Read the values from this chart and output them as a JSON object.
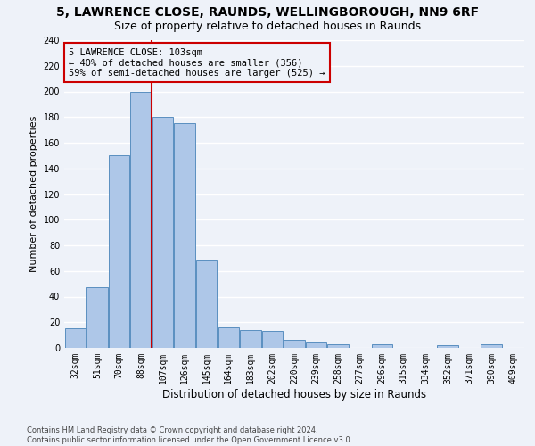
{
  "title_line1": "5, LAWRENCE CLOSE, RAUNDS, WELLINGBOROUGH, NN9 6RF",
  "title_line2": "Size of property relative to detached houses in Raunds",
  "xlabel": "Distribution of detached houses by size in Raunds",
  "ylabel": "Number of detached properties",
  "categories": [
    "32sqm",
    "51sqm",
    "70sqm",
    "88sqm",
    "107sqm",
    "126sqm",
    "145sqm",
    "164sqm",
    "183sqm",
    "202sqm",
    "220sqm",
    "239sqm",
    "258sqm",
    "277sqm",
    "296sqm",
    "315sqm",
    "334sqm",
    "352sqm",
    "371sqm",
    "390sqm",
    "409sqm"
  ],
  "bar_heights": [
    15,
    47,
    150,
    200,
    180,
    175,
    68,
    16,
    14,
    13,
    6,
    5,
    3,
    0,
    3,
    0,
    0,
    2,
    0,
    3,
    0
  ],
  "bar_color": "#aec7e8",
  "bar_edge_color": "#5a8fc0",
  "vline_x": 3.5,
  "annotation_line1": "5 LAWRENCE CLOSE: 103sqm",
  "annotation_line2": "← 40% of detached houses are smaller (356)",
  "annotation_line3": "59% of semi-detached houses are larger (525) →",
  "vline_color": "#cc0000",
  "ylim": [
    0,
    240
  ],
  "yticks": [
    0,
    20,
    40,
    60,
    80,
    100,
    120,
    140,
    160,
    180,
    200,
    220,
    240
  ],
  "footer_line1": "Contains HM Land Registry data © Crown copyright and database right 2024.",
  "footer_line2": "Contains public sector information licensed under the Open Government Licence v3.0.",
  "bg_color": "#eef2f9",
  "grid_color": "#ffffff",
  "title1_fontsize": 10,
  "title2_fontsize": 9,
  "xlabel_fontsize": 8.5,
  "ylabel_fontsize": 8,
  "tick_fontsize": 7,
  "footer_fontsize": 6,
  "annot_fontsize": 7.5
}
